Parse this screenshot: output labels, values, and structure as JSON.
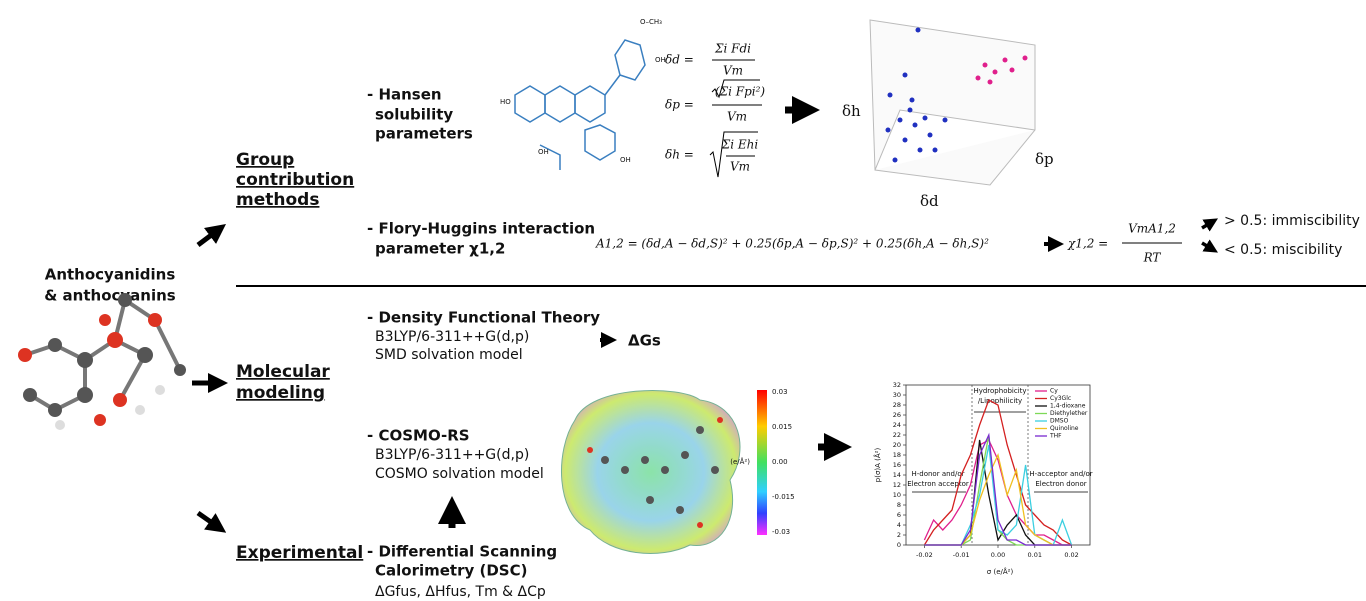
{
  "title": {
    "line1": "Anthocyanidins",
    "line2": "& anthocyanins"
  },
  "methods": [
    {
      "label": [
        "Group",
        "contribution",
        "methods"
      ]
    },
    {
      "label": [
        "Molecular",
        "modeling"
      ]
    },
    {
      "label": [
        "Experimental"
      ]
    }
  ],
  "hansen": {
    "label": [
      "- Hansen",
      "solubility",
      "parameters"
    ],
    "eq_d": {
      "lhs": "δd =",
      "num": "Σi Fdi",
      "den": "Vm"
    },
    "eq_p": {
      "lhs": "δp =",
      "num": "(Σi Fpi²)",
      "den": "Vm"
    },
    "eq_h": {
      "lhs": "δh =",
      "num": "Σi Ehi",
      "den": "Vm"
    },
    "axes": {
      "h": "δh",
      "p": "δp",
      "d": "δd"
    }
  },
  "flory": {
    "label": [
      "- Flory-Huggins interaction",
      "parameter χ1,2"
    ],
    "equation": "A1,2 = (δd,A − δd,S)² + 0.25(δp,A − δp,S)² + 0.25(δh,A − δh,S)²",
    "chi": {
      "lhs": "χ1,2 =",
      "num": "VmA1,2",
      "den": "RT"
    },
    "outcomes": [
      "> 0.5: immiscibility",
      "< 0.5: miscibility"
    ]
  },
  "dft": {
    "label": "- Density Functional Theory",
    "lines": [
      "B3LYP/6-311++G(d,p)",
      "SMD solvation model"
    ],
    "result": "ΔGs"
  },
  "cosmo": {
    "label": "- COSMO-RS",
    "lines": [
      "B3LYP/6-311++G(d,p)",
      "COSMO solvation model"
    ],
    "colorbar": {
      "labels": [
        "0.03",
        "0.015",
        "0.00",
        "-0.015",
        "-0.03"
      ],
      "unit": "(e/Å²)"
    }
  },
  "dsc": {
    "label": [
      "- Differential Scanning",
      "Calorimetry (DSC)"
    ],
    "properties": "ΔGfus, ΔHfus, Tm & ΔCp"
  },
  "sigma_profile": {
    "type": "line",
    "x_label": "σ (e/Å²)",
    "y_label": "p(σ)A (Å²)",
    "annotations": {
      "center": [
        "Hydrophobicity",
        "/Lipophilicity"
      ],
      "left": [
        "H-donor and/or",
        "Electron acceptor"
      ],
      "right": [
        "H-acceptor and/or",
        "Electron donor"
      ]
    },
    "x": [
      -0.02,
      -0.0175,
      -0.015,
      -0.0125,
      -0.01,
      -0.0075,
      -0.005,
      -0.0025,
      0,
      0.0025,
      0.005,
      0.0075,
      0.01,
      0.0125,
      0.015,
      0.0175,
      0.02
    ],
    "series": [
      {
        "name": "Cy",
        "color": "#e0208c",
        "values": [
          1,
          5,
          3,
          5,
          8,
          12,
          20,
          21,
          17,
          10,
          6,
          4,
          2,
          2,
          1,
          0,
          0
        ]
      },
      {
        "name": "Cy3Glc",
        "color": "#d42020",
        "values": [
          0,
          3,
          5,
          7,
          14,
          18,
          24,
          29,
          28,
          20,
          14,
          8,
          6,
          4,
          3,
          1,
          0
        ]
      },
      {
        "name": "1,4-dioxane",
        "color": "#111111",
        "values": [
          0,
          0,
          0,
          0,
          0,
          2,
          21,
          10,
          1,
          4,
          6,
          2,
          0,
          0,
          0,
          0,
          0
        ]
      },
      {
        "name": "Diethylether",
        "color": "#7ed957",
        "values": [
          0,
          0,
          0,
          0,
          0,
          1,
          12,
          22,
          3,
          1,
          0,
          0,
          0,
          0,
          0,
          0,
          0
        ]
      },
      {
        "name": "DMSO",
        "color": "#3ccfe0",
        "values": [
          0,
          0,
          0,
          0,
          0,
          4,
          10,
          20,
          3,
          2,
          4,
          16,
          2,
          1,
          0,
          5,
          0
        ]
      },
      {
        "name": "Quinoline",
        "color": "#f0c020",
        "values": [
          0,
          0,
          0,
          0,
          0,
          2,
          9,
          14,
          18,
          10,
          15,
          4,
          2,
          1,
          0,
          0,
          0
        ]
      },
      {
        "name": "THF",
        "color": "#7a2ad0",
        "values": [
          0,
          0,
          0,
          0,
          0,
          3,
          18,
          22,
          5,
          1,
          1,
          0,
          0,
          0,
          0,
          0,
          0
        ]
      }
    ],
    "xlim": [
      -0.025,
      0.025
    ],
    "ylim": [
      0,
      32
    ],
    "xticks": [
      -0.02,
      -0.01,
      {
        "value": 0,
        "label": "0.00"
      },
      0.01,
      0.02
    ],
    "yticks": [
      0,
      2,
      4,
      6,
      8,
      10,
      12,
      14,
      16,
      18,
      20,
      22,
      24,
      26,
      28,
      30,
      32
    ]
  }
}
